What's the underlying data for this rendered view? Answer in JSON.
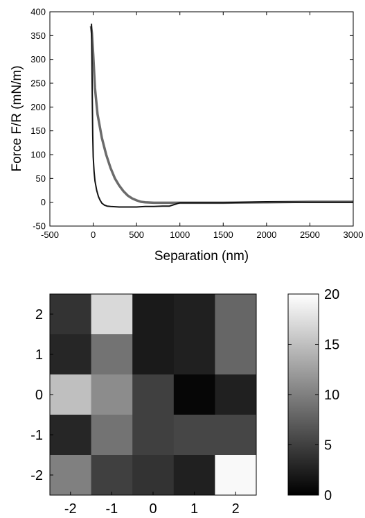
{
  "chart_data": [
    {
      "type": "line",
      "title": "",
      "xlabel": "Separation (nm)",
      "ylabel": "Force F/R (mN/m)",
      "xlim": [
        -500,
        3000
      ],
      "ylim": [
        -50,
        400
      ],
      "xticks": [
        -500,
        0,
        500,
        1000,
        1500,
        2000,
        2500,
        3000
      ],
      "yticks": [
        -50,
        0,
        50,
        100,
        150,
        200,
        250,
        300,
        350,
        400
      ],
      "grid": false,
      "legend": "none",
      "series": [
        {
          "color": "#6b6b6b",
          "x": [
            -25,
            -15,
            0,
            20,
            50,
            100,
            150,
            200,
            250,
            300,
            350,
            400,
            450,
            500,
            550,
            600,
            700,
            800,
            1000,
            1500,
            2000,
            2500,
            3000
          ],
          "y": [
            370,
            355,
            310,
            240,
            185,
            135,
            100,
            72,
            50,
            35,
            23,
            14,
            8,
            4,
            1,
            0,
            -1,
            -1,
            -1,
            -1,
            0,
            1,
            1
          ]
        },
        {
          "color": "#111111",
          "x": [
            -20,
            -15,
            -10,
            -5,
            0,
            10,
            20,
            40,
            60,
            80,
            100,
            130,
            160,
            200,
            300,
            400,
            500,
            600,
            700,
            800,
            880,
            1000,
            1500,
            2000,
            2500,
            3000
          ],
          "y": [
            375,
            300,
            210,
            140,
            95,
            65,
            45,
            25,
            12,
            4,
            -2,
            -6,
            -8,
            -9,
            -10,
            -10,
            -10,
            -9,
            -9,
            -8,
            -8,
            -1,
            -1,
            1,
            0,
            0
          ]
        }
      ]
    },
    {
      "type": "heatmap",
      "title": "",
      "x_categories": [
        "-2",
        "-1",
        "0",
        "1",
        "2"
      ],
      "y_categories": [
        "2",
        "1",
        "0",
        "-1",
        "-2"
      ],
      "values": [
        [
          4,
          17,
          2,
          2.5,
          8
        ],
        [
          3,
          9,
          2,
          2.5,
          8
        ],
        [
          15,
          11,
          5,
          0.5,
          2.5
        ],
        [
          3,
          9,
          5,
          5.5,
          5.5
        ],
        [
          10,
          5,
          4,
          2.5,
          19.5
        ]
      ],
      "colorbar": {
        "min": 0,
        "max": 20,
        "ticks": [
          "0",
          "5",
          "10",
          "15",
          "20"
        ]
      }
    }
  ]
}
